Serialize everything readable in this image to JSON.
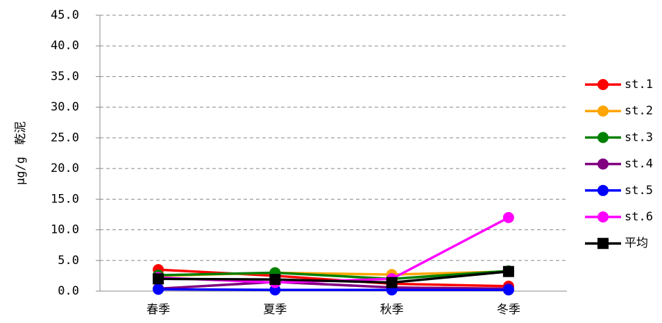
{
  "chart_data": {
    "type": "line",
    "y_label": "μg/g　乾泥",
    "categories": [
      "春季",
      "夏季",
      "秋季",
      "冬季"
    ],
    "series": [
      {
        "name": "st.1",
        "color": "#ff0000",
        "marker": "circle",
        "values": [
          3.5,
          2.5,
          1.2,
          0.8
        ]
      },
      {
        "name": "st.2",
        "color": "#ffa500",
        "marker": "circle",
        "values": [
          2.5,
          3.0,
          2.7,
          3.2
        ]
      },
      {
        "name": "st.3",
        "color": "#008000",
        "marker": "circle",
        "values": [
          2.6,
          3.0,
          2.0,
          3.3
        ]
      },
      {
        "name": "st.4",
        "color": "#800080",
        "marker": "circle",
        "values": [
          0.4,
          1.5,
          0.6,
          0.4
        ]
      },
      {
        "name": "st.5",
        "color": "#0000ff",
        "marker": "circle",
        "values": [
          0.3,
          0.2,
          0.2,
          0.2
        ]
      },
      {
        "name": "st.6",
        "color": "#ff00ff",
        "marker": "circle",
        "values": [
          2.2,
          1.4,
          2.0,
          12.0
        ]
      },
      {
        "name": "平均",
        "color": "#000000",
        "marker": "square",
        "values": [
          2.0,
          1.9,
          1.4,
          3.2
        ]
      }
    ],
    "ylim": [
      0,
      45
    ],
    "yticks": [
      {
        "value": 0,
        "label": "0.0"
      },
      {
        "value": 5,
        "label": "5.0"
      },
      {
        "value": 10,
        "label": "10.0"
      },
      {
        "value": 15,
        "label": "15.0"
      },
      {
        "value": 20,
        "label": "20.0"
      },
      {
        "value": 25,
        "label": "25.0"
      },
      {
        "value": 30,
        "label": "30.0"
      },
      {
        "value": 35,
        "label": "35.0"
      },
      {
        "value": 40,
        "label": "40.0"
      },
      {
        "value": 45,
        "label": "45.0"
      }
    ],
    "grid": true,
    "legend": "right"
  }
}
